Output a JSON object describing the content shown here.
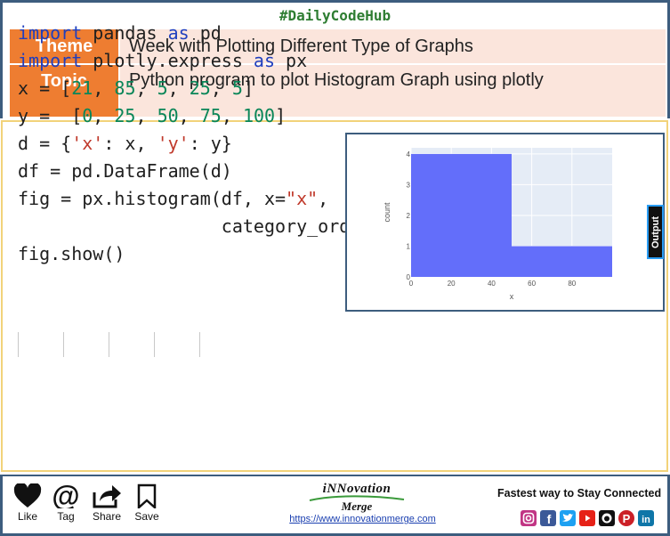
{
  "header": {
    "hashtag": "#DailyCodeHub",
    "theme_label": "Theme",
    "theme_value": "Week with Plotting Different Type of Graphs",
    "topic_label": "Topic",
    "topic_value": "Python program to plot Histogram Graph using plotly"
  },
  "output_label": "Output",
  "chart_data": {
    "type": "bar",
    "bins": [
      {
        "start": 0,
        "end": 50,
        "count": 4
      },
      {
        "start": 50,
        "end": 100,
        "count": 1
      }
    ],
    "xlabel": "x",
    "ylabel": "count",
    "xticks": [
      "0",
      "20",
      "40",
      "60",
      "80"
    ],
    "yticks": [
      "0",
      "1",
      "2",
      "3",
      "4"
    ],
    "xlim": [
      0,
      100
    ],
    "ylim": [
      0,
      4.2
    ],
    "bar_color": "#636efa",
    "plot_bg": "#e5ecf6",
    "grid": true
  },
  "footer": {
    "like_label": "Like",
    "tag_label": "Tag",
    "share_label": "Share",
    "save_label": "Save",
    "logo_main": "iNNovation",
    "logo_sub": "Merge",
    "url": "https://www.innovationmerge.com",
    "fast_text": "Fastest way to Stay Connected",
    "social_icons": [
      "instagram-icon",
      "facebook-icon",
      "twitter-icon",
      "youtube-icon",
      "github-icon",
      "pinterest-icon",
      "linkedin-icon"
    ],
    "social_colors": [
      "#c13584",
      "#3b5998",
      "#1da1f2",
      "#e62117",
      "#111111",
      "#cb2027",
      "#0e76a8"
    ]
  }
}
